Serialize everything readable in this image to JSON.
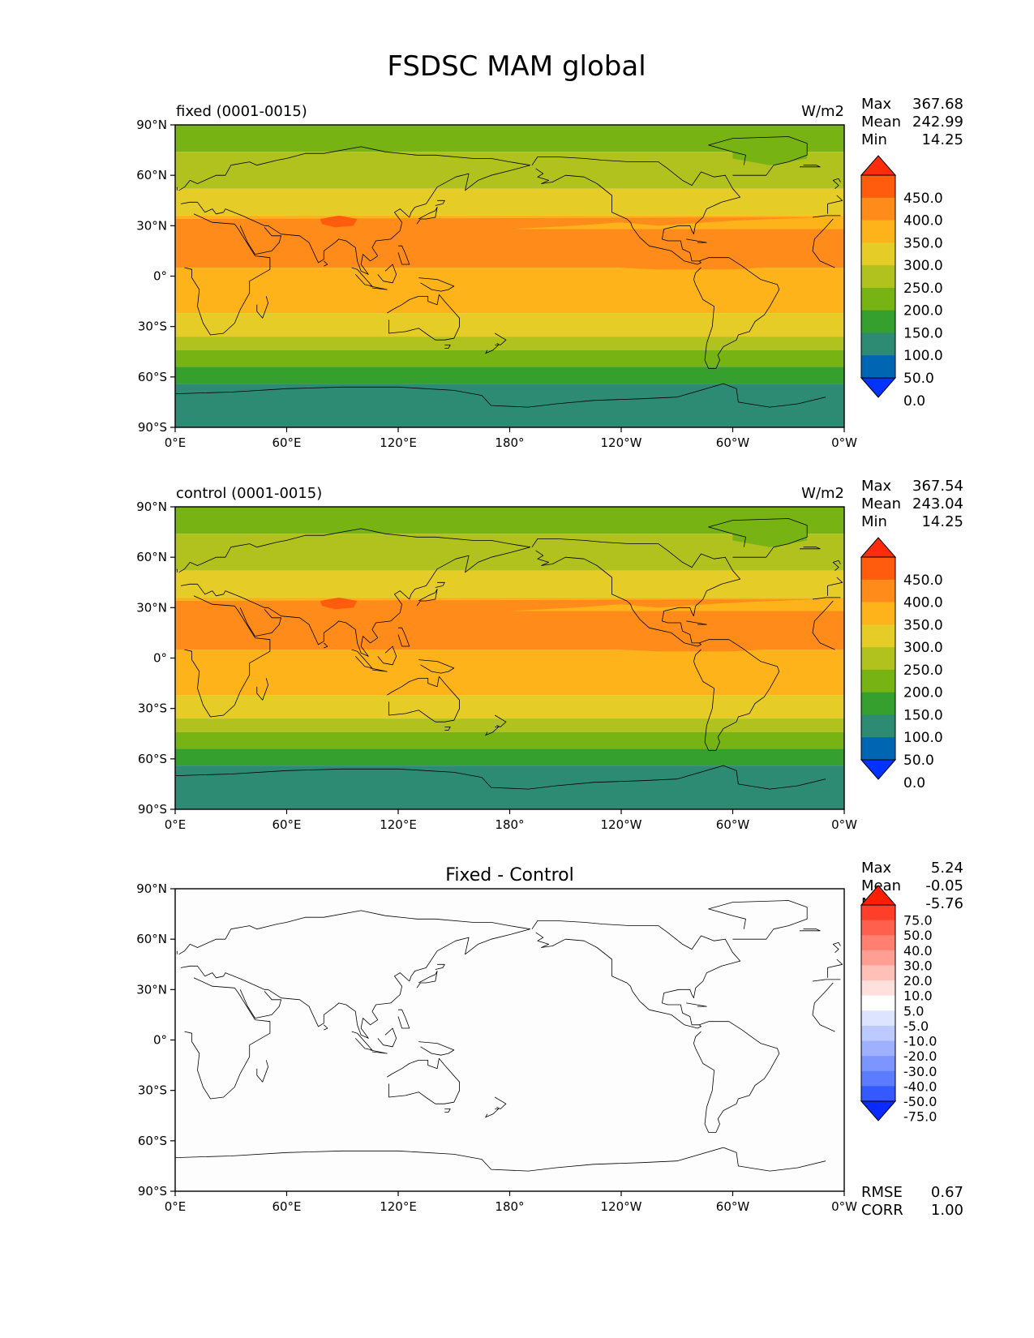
{
  "figure_title": "FSDSC MAM global",
  "lat_ticks": [
    "90°N",
    "60°N",
    "30°N",
    "0°",
    "30°S",
    "60°S",
    "90°S"
  ],
  "lon_ticks": [
    "0°E",
    "60°E",
    "120°E",
    "180°",
    "120°W",
    "60°W",
    "0°W"
  ],
  "panels": [
    {
      "id": "fixed",
      "left_title": "fixed (0001-0015)",
      "center_title": "",
      "units": "W/m2",
      "stats": [
        {
          "label": "Max",
          "value": "367.68"
        },
        {
          "label": "Mean",
          "value": "242.99"
        },
        {
          "label": "Min",
          "value": "14.25"
        }
      ],
      "colorbar_labels": [
        "450.0",
        "400.0",
        "350.0",
        "300.0",
        "250.0",
        "200.0",
        "150.0",
        "100.0",
        "50.0",
        "0.0"
      ]
    },
    {
      "id": "control",
      "left_title": "control (0001-0015)",
      "center_title": "",
      "units": "W/m2",
      "stats": [
        {
          "label": "Max",
          "value": "367.54"
        },
        {
          "label": "Mean",
          "value": "243.04"
        },
        {
          "label": "Min",
          "value": "14.25"
        }
      ],
      "colorbar_labels": [
        "450.0",
        "400.0",
        "350.0",
        "300.0",
        "250.0",
        "200.0",
        "150.0",
        "100.0",
        "50.0",
        "0.0"
      ]
    },
    {
      "id": "diff",
      "left_title": "",
      "center_title": "Fixed - Control",
      "units": "",
      "stats": [
        {
          "label": "Max",
          "value": "5.24"
        },
        {
          "label": "Mean",
          "value": "-0.05"
        },
        {
          "label": "Min",
          "value": "-5.76"
        }
      ],
      "colorbar_labels": [
        "75.0",
        "50.0",
        "40.0",
        "30.0",
        "20.0",
        "10.0",
        "5.0",
        "-5.0",
        "-10.0",
        "-20.0",
        "-30.0",
        "-40.0",
        "-50.0",
        "-75.0"
      ],
      "extra_stats": [
        {
          "label": "RMSE",
          "value": "0.67"
        },
        {
          "label": "CORR",
          "value": "1.00"
        }
      ]
    }
  ],
  "colors": {
    "abs_cmap": [
      "#0033ff",
      "#0066b3",
      "#2e8b73",
      "#36a02e",
      "#77b312",
      "#b1c21e",
      "#e6cc26",
      "#ffb31a",
      "#ff8c1a",
      "#ff5c0d",
      "#ff2b0d"
    ],
    "diff_cmap": [
      "#0a2bff",
      "#3359ff",
      "#5c7cff",
      "#7d96ff",
      "#9eb0ff",
      "#bdcaff",
      "#dde4ff",
      "#ffffff",
      "#ffe0dc",
      "#ffc0b8",
      "#ff9f94",
      "#ff7f70",
      "#ff5f4d",
      "#ff3f29",
      "#ff1f05"
    ],
    "land_outline": "#000000"
  }
}
